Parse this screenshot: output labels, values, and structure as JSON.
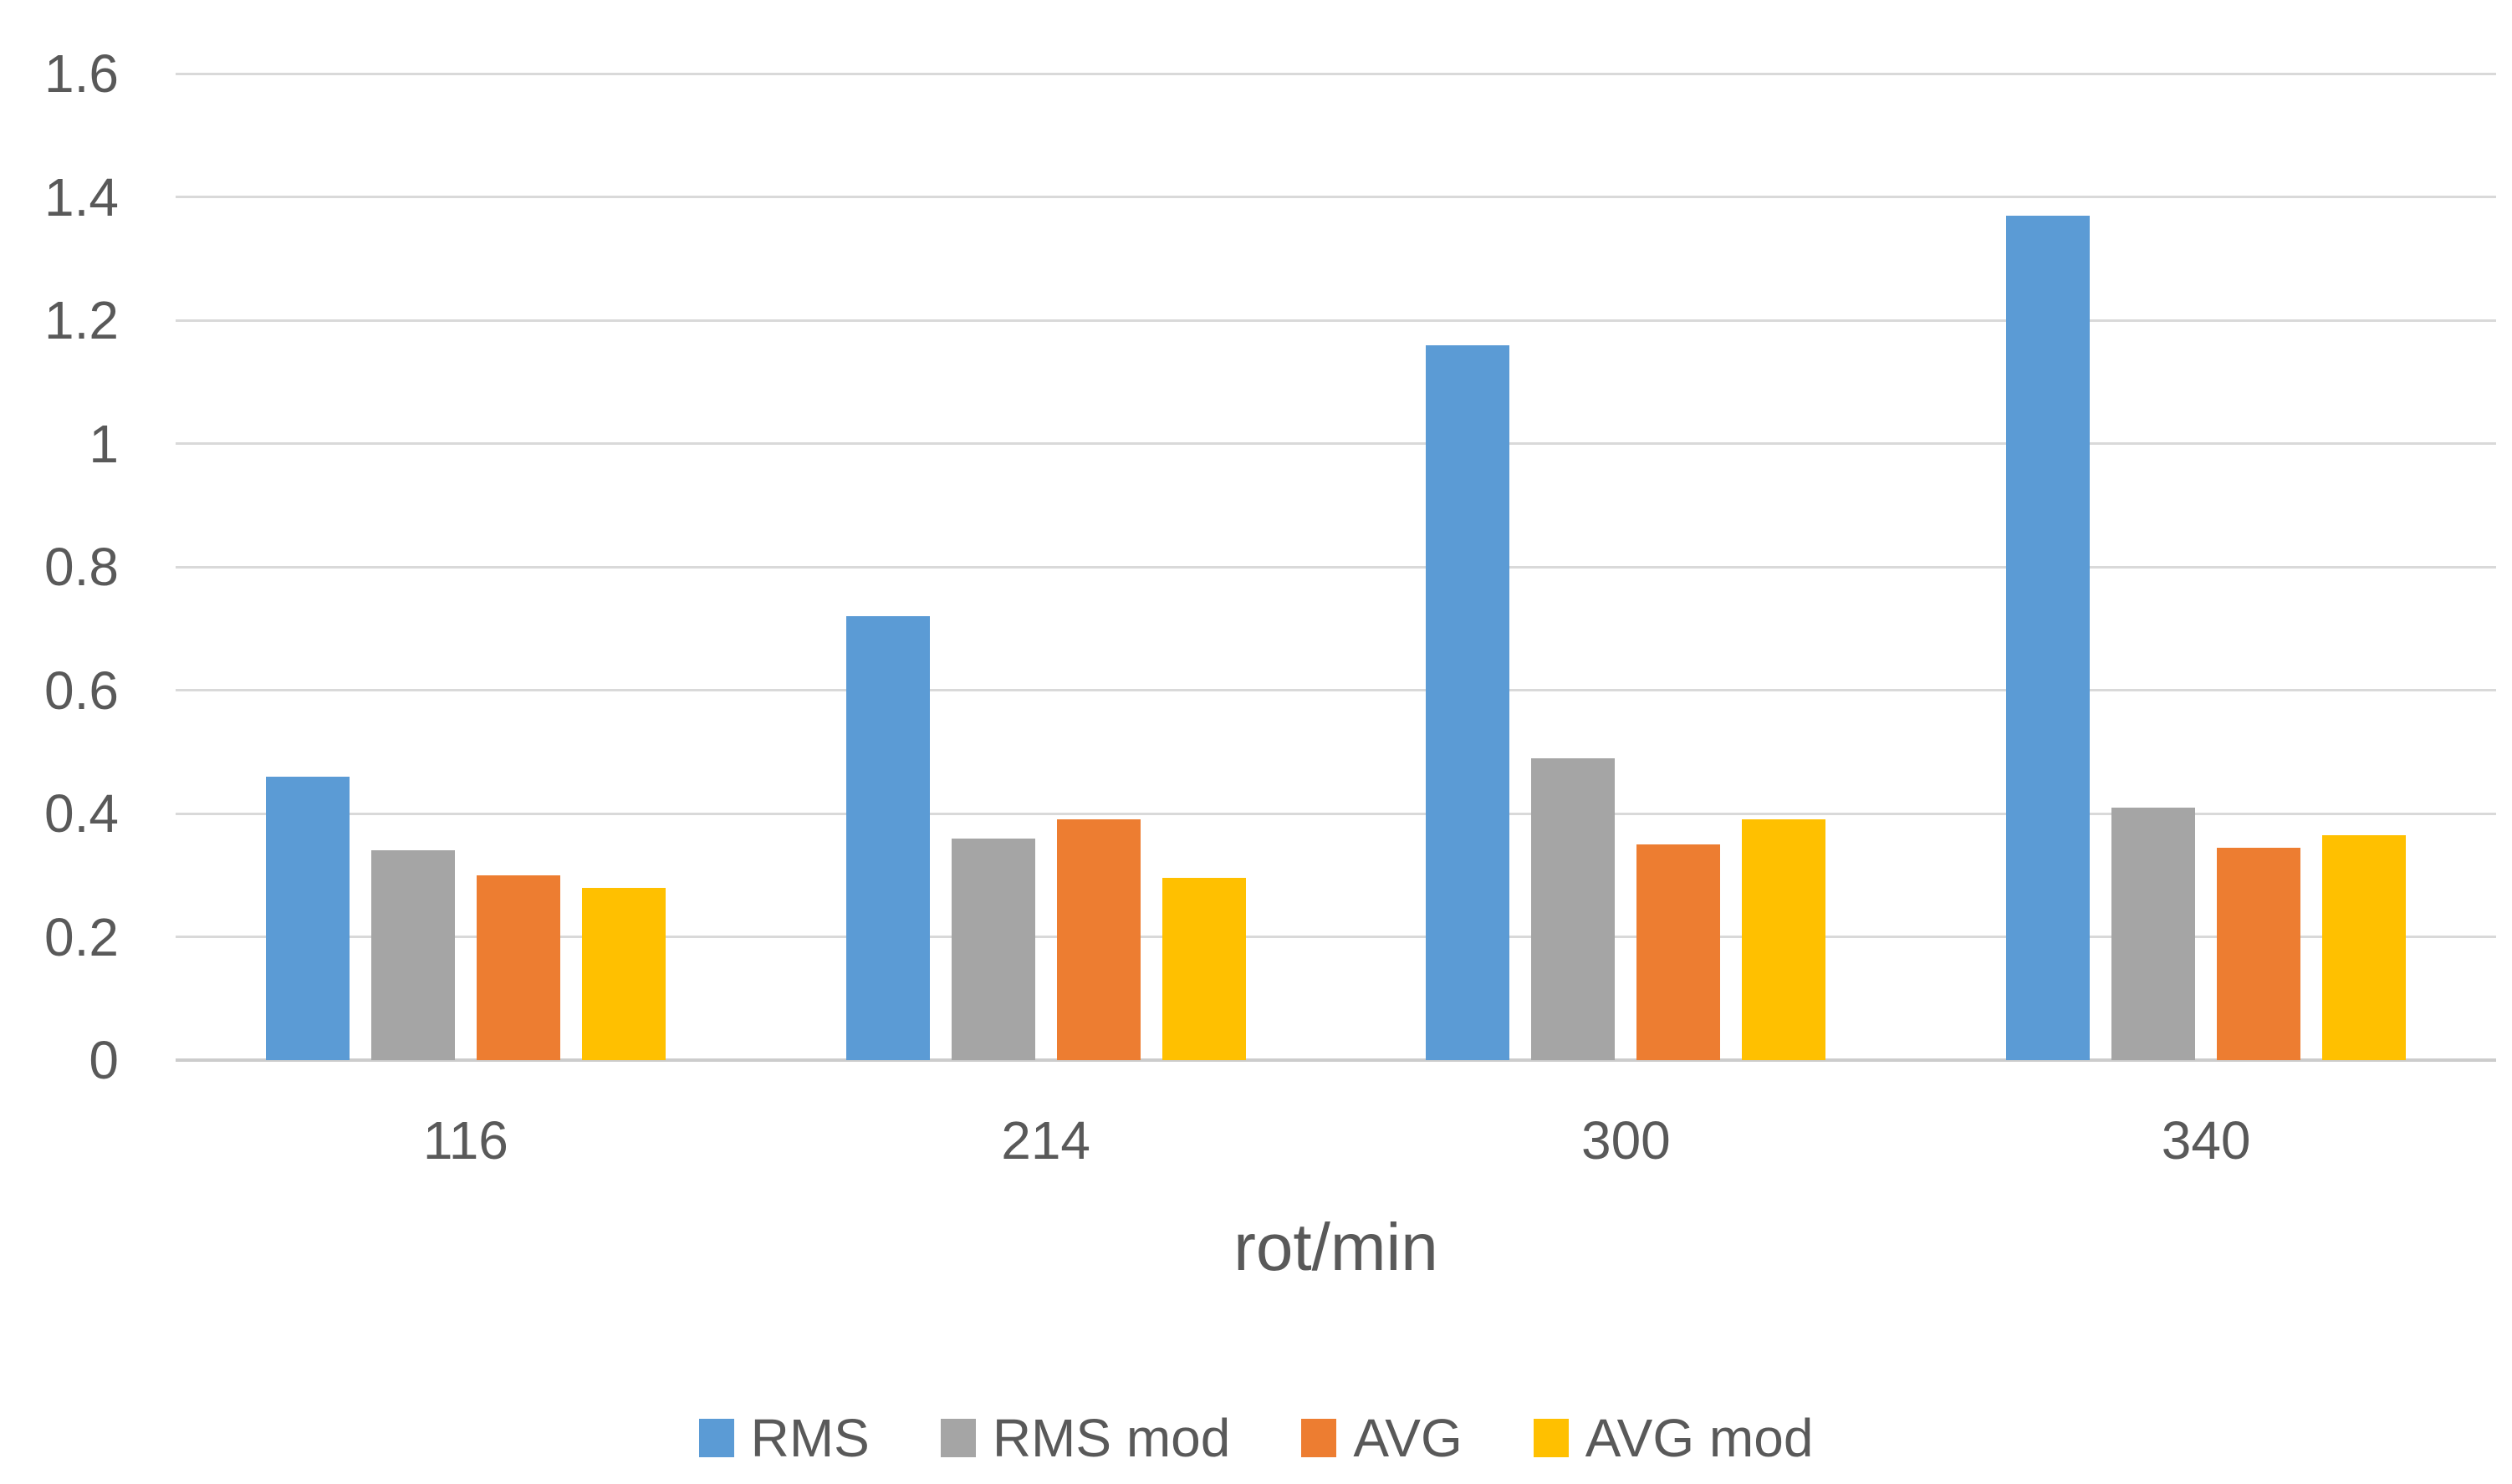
{
  "chart_data": {
    "type": "bar",
    "title": "",
    "xlabel": "rot/min",
    "ylabel": "",
    "categories": [
      "116",
      "214",
      "300",
      "340"
    ],
    "series": [
      {
        "name": "RMS",
        "color": "#5B9BD5",
        "values": [
          0.46,
          0.72,
          1.16,
          1.37
        ]
      },
      {
        "name": "RMS mod",
        "color": "#A5A5A5",
        "values": [
          0.34,
          0.36,
          0.49,
          0.41
        ]
      },
      {
        "name": "AVG",
        "color": "#ED7D31",
        "values": [
          0.3,
          0.39,
          0.35,
          0.345
        ]
      },
      {
        "name": "AVG mod",
        "color": "#FFC000",
        "values": [
          0.28,
          0.295,
          0.39,
          0.365
        ]
      }
    ],
    "ylim": [
      0,
      1.6
    ],
    "ytick_step": 0.2,
    "ytick_labels": [
      "0",
      "0.2",
      "0.4",
      "0.6",
      "0.8",
      "1",
      "1.2",
      "1.4",
      "1.6"
    ],
    "grid": true,
    "gridline_color": "#d9d9d9",
    "text_color": "#595959",
    "background": "#ffffff",
    "legend_position": "bottom"
  }
}
